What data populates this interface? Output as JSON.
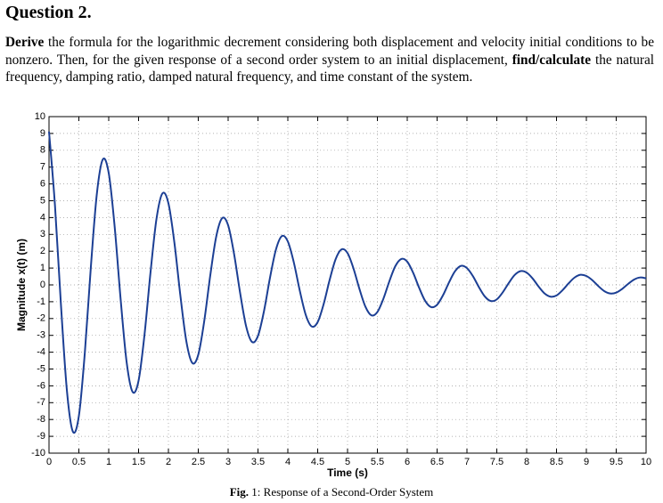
{
  "heading": "Question 2.",
  "paragraph": {
    "runs": [
      {
        "text": "Derive",
        "bold": true
      },
      {
        "text": " the formula for the logarithmic decrement considering both displacement and velocity initial conditions to be nonzero. Then, for the given response of a second order system to an initial displacement, ",
        "bold": false
      },
      {
        "text": "find/calculate",
        "bold": true
      },
      {
        "text": " the natural frequency, damping ratio, damped natural frequency, and time constant of the system.",
        "bold": false
      }
    ]
  },
  "chart_data": {
    "type": "line",
    "xlabel": "Time (s)",
    "ylabel": "Magnitude x(t) (m)",
    "color": "#1c3f94",
    "grid": true,
    "xlim": [
      0,
      10
    ],
    "ylim": [
      -10,
      10
    ],
    "xticks": [
      0,
      0.5,
      1,
      1.5,
      2,
      2.5,
      3,
      3.5,
      4,
      4.5,
      5,
      5.5,
      6,
      6.5,
      7,
      7.5,
      8,
      8.5,
      9,
      9.5,
      10
    ],
    "yticks": [
      -10,
      -9,
      -8,
      -7,
      -6,
      -5,
      -4,
      -3,
      -2,
      -1,
      0,
      1,
      2,
      3,
      4,
      5,
      6,
      7,
      8,
      9,
      10
    ],
    "x": [
      0,
      0.1,
      0.2,
      0.3,
      0.4,
      0.5,
      0.6,
      0.7,
      0.8,
      0.9,
      1,
      1.1,
      1.2,
      1.3,
      1.4,
      1.5,
      1.6,
      1.7,
      1.8,
      1.9,
      2,
      2.1,
      2.2,
      2.3,
      2.4,
      2.5,
      2.6,
      2.7,
      2.8,
      2.9,
      3,
      3.1,
      3.2,
      3.3,
      3.4,
      3.5,
      3.6,
      3.7,
      3.8,
      3.9,
      4,
      4.1,
      4.2,
      4.3,
      4.4,
      4.5,
      4.6,
      4.7,
      4.8,
      4.9,
      5,
      5.1,
      5.2,
      5.3,
      5.4,
      5.5,
      5.6,
      5.7,
      5.8,
      5.9,
      6,
      6.1,
      6.2,
      6.3,
      6.4,
      6.5,
      6.6,
      6.7,
      6.8,
      6.9,
      7,
      7.1,
      7.2,
      7.3,
      7.4,
      7.5,
      7.6,
      7.7,
      7.8,
      7.9,
      8,
      8.1,
      8.2,
      8.3,
      8.4,
      8.5,
      8.6,
      8.7,
      8.8,
      8.9,
      9,
      9.1,
      9.2,
      9.3,
      9.4,
      9.5,
      9.6,
      9.7,
      9.8,
      9.9,
      10
    ],
    "values": [
      9.11,
      4.71,
      -1.19,
      -6.29,
      -8.72,
      -7.79,
      -4.03,
      1.02,
      5.37,
      7.45,
      6.65,
      3.44,
      -0.87,
      -4.59,
      -6.36,
      -5.69,
      -2.94,
      0.74,
      3.92,
      5.44,
      4.85,
      2.51,
      -0.63,
      -3.35,
      -4.64,
      -4.15,
      -2.15,
      0.54,
      2.86,
      3.97,
      3.54,
      1.83,
      -0.46,
      -2.44,
      -3.39,
      -3.03,
      -1.57,
      0.4,
      2.09,
      2.9,
      2.58,
      1.34,
      -0.34,
      -1.78,
      -2.47,
      -2.21,
      -1.14,
      0.29,
      1.52,
      2.11,
      1.89,
      0.97,
      -0.25,
      -1.3,
      -1.81,
      -1.61,
      -0.83,
      0.21,
      1.11,
      1.54,
      1.38,
      0.71,
      -0.18,
      -0.95,
      -1.32,
      -1.18,
      -0.61,
      0.15,
      0.81,
      1.13,
      1.0,
      0.52,
      -0.13,
      -0.69,
      -0.96,
      -0.86,
      -0.44,
      0.11,
      0.59,
      0.82,
      0.73,
      0.38,
      -0.1,
      -0.51,
      -0.7,
      -0.63,
      -0.32,
      0.08,
      0.43,
      0.6,
      0.53,
      0.28,
      -0.07,
      -0.37,
      -0.51,
      -0.46,
      -0.24,
      0.06,
      0.32,
      0.44,
      0.39
    ]
  },
  "caption": {
    "label": "Fig.",
    "text": " 1: Response of a Second-Order System"
  }
}
